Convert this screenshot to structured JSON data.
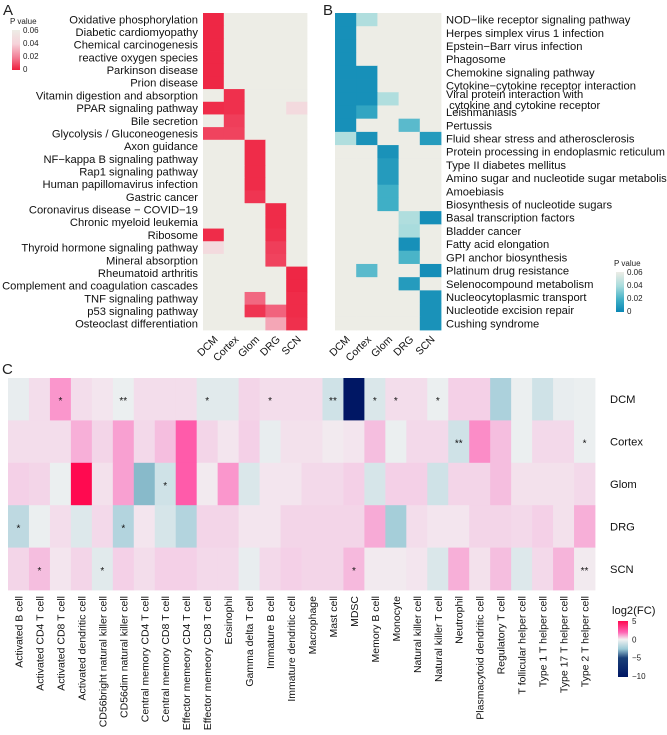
{
  "chart_data": [
    {
      "panel": "A",
      "type": "heatmap",
      "legend_title": "P value",
      "legend_ticks": [
        "0.06",
        "0.04",
        "0.02",
        "0"
      ],
      "scale": {
        "min": 0,
        "max": 0.06,
        "low_color": "#EE1E3C",
        "high_color": "#EDEDE6"
      },
      "columns": [
        "DCM",
        "Cortex",
        "Glom",
        "DRG",
        "SCN"
      ],
      "rows": [
        "Oxidative phosphorylation",
        "Diabetic cardiomyopathy",
        "Chemical carcinogenesis",
        "reactive oxygen species",
        "Parkinson disease",
        "Prion disease",
        "Vitamin digestion and absorption",
        "PPAR signaling pathway",
        "Bile secretion",
        "Glycolysis / Gluconeogenesis",
        "Axon guidance",
        "NF−kappa B signaling pathway",
        "Rap1 signaling pathway",
        "Human papillomavirus infection",
        "Gastric cancer",
        "Coronavirus disease − COVID−19",
        "Chronic myeloid leukemia",
        "Ribosome",
        "Thyroid hormone signaling pathway",
        "Mineral absorption",
        "Rheumatoid arthritis",
        "Complement and coagulation cascades",
        "TNF signaling pathway",
        "p53 signaling pathway",
        "Osteoclast differentiation"
      ],
      "values": [
        [
          0.002,
          null,
          null,
          null,
          null
        ],
        [
          0.002,
          null,
          null,
          null,
          null
        ],
        [
          0.002,
          null,
          null,
          null,
          null
        ],
        [
          0.002,
          null,
          null,
          null,
          null
        ],
        [
          0.002,
          null,
          null,
          null,
          null
        ],
        [
          0.002,
          null,
          null,
          null,
          null
        ],
        [
          null,
          0.004,
          null,
          null,
          null
        ],
        [
          0.003,
          0.004,
          null,
          null,
          0.046
        ],
        [
          null,
          0.007,
          null,
          null,
          null
        ],
        [
          0.008,
          0.008,
          null,
          null,
          null
        ],
        [
          null,
          null,
          0.003,
          null,
          null
        ],
        [
          null,
          null,
          0.003,
          null,
          null
        ],
        [
          null,
          null,
          0.003,
          null,
          null
        ],
        [
          null,
          null,
          0.003,
          null,
          null
        ],
        [
          null,
          null,
          0.005,
          null,
          null
        ],
        [
          null,
          null,
          null,
          0.003,
          null
        ],
        [
          null,
          null,
          null,
          0.003,
          null
        ],
        [
          0.003,
          null,
          null,
          0.004,
          null
        ],
        [
          0.046,
          null,
          null,
          0.007,
          null
        ],
        [
          null,
          null,
          null,
          0.008,
          null
        ],
        [
          null,
          null,
          null,
          null,
          0.002
        ],
        [
          null,
          null,
          null,
          null,
          0.002
        ],
        [
          null,
          null,
          0.016,
          null,
          0.003
        ],
        [
          null,
          null,
          0.005,
          0.015,
          0.003
        ],
        [
          null,
          null,
          null,
          0.03,
          0.004
        ]
      ]
    },
    {
      "panel": "B",
      "type": "heatmap",
      "legend_title": "P value",
      "legend_ticks": [
        "0.06",
        "0.04",
        "0.02",
        "0"
      ],
      "scale": {
        "min": 0,
        "max": 0.06,
        "low_color": "#0A86B4",
        "high_color": "#EDEDE6"
      },
      "columns": [
        "DCM",
        "Cortex",
        "Glom",
        "DRG",
        "SCN"
      ],
      "rows": [
        "NOD−like receptor signaling pathway",
        "Herpes simplex virus 1 infection",
        "Epstein−Barr virus infection",
        "Phagosome",
        "Chemokine signaling pathway",
        "Cytokine−cytokine receptor interaction",
        "Viral protein interaction with cytokine and cytokine receptor",
        "Leishmaniasis",
        "Pertussis",
        "Fluid shear stress and atherosclerosis",
        "Protein processing in endoplasmic reticulum",
        "Type II diabetes mellitus",
        "Amino sugar and nucleotide sugar metabolism",
        "Amoebiasis",
        "Biosynthesis of nucleotide sugars",
        "Basal transcription factors",
        "Bladder cancer",
        "Fatty acid elongation",
        "GPI anchor biosynthesis",
        "Platinum drug resistance",
        "Selenocompound metabolism",
        "Nucleocytoplasmic transport",
        "Nucleotide excision repair",
        "Cushing syndrome"
      ],
      "values": [
        [
          0.005,
          0.042,
          null,
          null,
          null
        ],
        [
          0.005,
          null,
          null,
          null,
          null
        ],
        [
          0.005,
          null,
          null,
          null,
          null
        ],
        [
          0.005,
          null,
          null,
          null,
          null
        ],
        [
          0.005,
          0.005,
          null,
          null,
          null
        ],
        [
          0.005,
          0.005,
          null,
          null,
          null
        ],
        [
          0.005,
          0.005,
          0.042,
          null,
          null
        ],
        [
          0.005,
          0.015,
          null,
          null,
          null
        ],
        [
          0.005,
          null,
          null,
          0.025,
          null
        ],
        [
          0.042,
          0.006,
          null,
          null,
          0.01
        ],
        [
          null,
          null,
          0.006,
          null,
          null
        ],
        [
          null,
          null,
          0.01,
          null,
          null
        ],
        [
          null,
          null,
          0.01,
          null,
          null
        ],
        [
          null,
          null,
          0.02,
          null,
          null
        ],
        [
          null,
          null,
          0.02,
          null,
          null
        ],
        [
          null,
          null,
          null,
          0.042,
          0.004
        ],
        [
          null,
          null,
          null,
          0.04,
          null
        ],
        [
          null,
          null,
          null,
          0.005,
          null
        ],
        [
          null,
          null,
          null,
          0.022,
          null
        ],
        [
          null,
          0.025,
          null,
          null,
          0.004
        ],
        [
          null,
          null,
          null,
          0.01,
          null
        ],
        [
          null,
          null,
          null,
          null,
          0.006
        ],
        [
          null,
          null,
          null,
          null,
          0.006
        ],
        [
          null,
          null,
          null,
          null,
          0.006
        ]
      ]
    },
    {
      "panel": "C",
      "type": "heatmap",
      "legend_title": "log2(FC)",
      "legend_ticks": [
        "5",
        "0",
        "−5",
        "−10"
      ],
      "scale": {
        "min": -10,
        "max": 5,
        "low_color": "#001764",
        "mid_color": "#F2F2F2",
        "high_color": "#FF0A50"
      },
      "rows": [
        "DCM",
        "Cortex",
        "Glom",
        "DRG",
        "SCN"
      ],
      "columns": [
        "Activated B cell",
        "Activated CD4 T cell",
        "Activated CD8 T cell",
        "Activated dendritic cell",
        "CD56bright natural killer cell",
        "CD56dim natural killer cell",
        "Central memory CD4 T cell",
        "Central memory CD8 T cell",
        "Effector memeory CD4 T cell",
        "Effector memeory CD8 T cell",
        "Eosinophil",
        "Gamma delta T cell",
        "Immature  B cell",
        "Immature dendritic cell",
        "Macrophage",
        "Mast cell",
        "MDSC",
        "Memory B cell",
        "Monocyte",
        "Natural killer cell",
        "Natural killer T cell",
        "Neutrophil",
        "Plasmacytoid dendritic cell",
        "Regulatory T cell",
        "T follicular helper cell",
        "Type 1 T helper cell",
        "Type 17 T helper cell",
        "Type 2 T helper cell"
      ],
      "values": [
        [
          -0.3,
          0.5,
          2,
          0.5,
          0.3,
          -0.2,
          0.5,
          0.5,
          0.5,
          -0.5,
          -0.5,
          0.7,
          0.5,
          0.5,
          0.5,
          -1,
          -10,
          -0.7,
          0.5,
          0.5,
          -0.2,
          0.8,
          0.8,
          -2,
          -0.2,
          -1,
          -0.3,
          -0.2
        ],
        [
          0.5,
          0.5,
          0.5,
          1.5,
          0.7,
          1.8,
          0.6,
          1.2,
          3.2,
          0.7,
          0.3,
          0.8,
          -0.3,
          0.4,
          0.4,
          0.2,
          0.3,
          1.2,
          -0.2,
          0.6,
          0.6,
          -1,
          2.2,
          1.2,
          -0.2,
          0.6,
          0.6,
          -0.2
        ],
        [
          0.8,
          0.7,
          -0.2,
          5,
          0.4,
          1.8,
          -3,
          -1,
          3.2,
          0.2,
          2,
          -0.7,
          0.3,
          0.3,
          0.6,
          0.6,
          0.8,
          -0.8,
          0.8,
          0.8,
          -1,
          0.7,
          0.7,
          1.2,
          0.4,
          0.4,
          0.4,
          0.6
        ],
        [
          -1.5,
          -0.2,
          0.5,
          -0.6,
          0.6,
          -1.8,
          0.3,
          -0.8,
          -1.8,
          0.7,
          0.7,
          0.3,
          0.3,
          0.7,
          0.7,
          0.7,
          0.7,
          1.6,
          -2.2,
          0.5,
          0.3,
          0.3,
          0.7,
          0.7,
          0.6,
          0.8,
          0.4,
          1.5
        ],
        [
          0.7,
          1.2,
          0.3,
          0.7,
          -0.5,
          0.8,
          0.5,
          0.8,
          0.8,
          0.6,
          0.6,
          -0.3,
          0.6,
          0.8,
          0.7,
          0.7,
          1.3,
          0.2,
          0.2,
          0.3,
          -0.7,
          1.5,
          0.4,
          1.2,
          -0.6,
          0.6,
          1.4,
          0.2
        ]
      ],
      "significance": [
        [
          "",
          "",
          "*",
          "",
          "",
          "**",
          "",
          "",
          "",
          "*",
          "",
          "",
          "*",
          "",
          "",
          "**",
          "",
          "*",
          "*",
          "",
          "*",
          "",
          "",
          "",
          "",
          "",
          "",
          ""
        ],
        [
          "",
          "",
          "",
          "",
          "",
          "",
          "",
          "",
          "",
          "",
          "",
          "",
          "",
          "",
          "",
          "",
          "",
          "",
          "",
          "",
          "",
          "**",
          "",
          "",
          "",
          "",
          "",
          "*"
        ],
        [
          "",
          "",
          "",
          "",
          "",
          "",
          "",
          "*",
          "",
          "",
          "",
          "",
          "",
          "",
          "",
          "",
          "",
          "",
          "",
          "",
          "",
          "",
          "",
          "",
          "",
          "",
          "",
          ""
        ],
        [
          "*",
          "",
          "",
          "",
          "",
          "*",
          "",
          "",
          "",
          "",
          "",
          "",
          "",
          "",
          "",
          "",
          "",
          "",
          "",
          "",
          "",
          "",
          "",
          "",
          "",
          "",
          "",
          ""
        ],
        [
          "",
          "*",
          "",
          "",
          "*",
          "",
          "",
          "",
          "",
          "",
          "",
          "",
          "",
          "",
          "",
          "",
          "*",
          "",
          "",
          "",
          "",
          "",
          "",
          "",
          "",
          "",
          "",
          "**"
        ]
      ]
    }
  ],
  "panel_labels": [
    "A",
    "B",
    "C"
  ]
}
